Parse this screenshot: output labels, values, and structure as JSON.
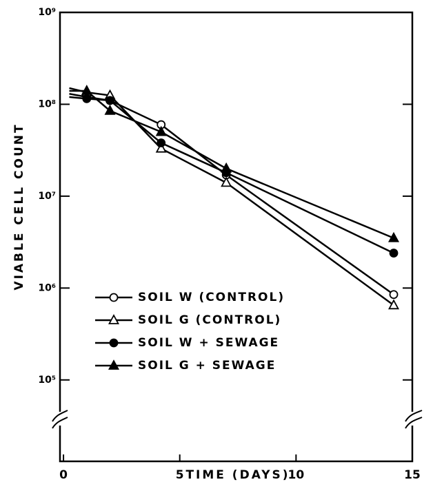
{
  "chart_data": {
    "type": "line",
    "x_label": "TIME (DAYS)",
    "y_label": "VIABLE CELL COUNT",
    "xlim": [
      -0.15,
      15
    ],
    "xticks": [
      0,
      5,
      10,
      15
    ],
    "ylim": [
      13000,
      1000000000
    ],
    "log_y": true,
    "yticks": [
      {
        "value": 100000,
        "label": "10⁵"
      },
      {
        "value": 1000000,
        "label": "10⁶"
      },
      {
        "value": 10000000,
        "label": "10⁷"
      },
      {
        "value": 100000000,
        "label": "10⁸"
      },
      {
        "value": 1000000000,
        "label": "10⁹"
      }
    ],
    "series": [
      {
        "name": "SOIL W (CONTROL)",
        "color": "#000000",
        "marker": "open-circle",
        "x": [
          0.25,
          1,
          2,
          4.2,
          7,
          14.2
        ],
        "values": [
          130000000,
          120000000,
          110000000,
          60000000,
          17000000,
          850000
        ]
      },
      {
        "name": "SOIL G (CONTROL)",
        "color": "#000000",
        "marker": "open-triangle",
        "x": [
          0.25,
          1,
          2,
          4.2,
          7,
          14.2
        ],
        "values": [
          150000000,
          135000000,
          125000000,
          33000000,
          14000000,
          650000
        ]
      },
      {
        "name": "SOIL W + SEWAGE",
        "color": "#000000",
        "marker": "filled-circle",
        "x": [
          0.25,
          1,
          2,
          4.2,
          7,
          14.2
        ],
        "values": [
          120000000,
          115000000,
          110000000,
          38000000,
          18000000,
          2400000
        ]
      },
      {
        "name": "SOIL G + SEWAGE",
        "color": "#000000",
        "marker": "filled-triangle",
        "x": [
          0.25,
          1,
          2,
          4.2,
          7,
          14.2
        ],
        "values": [
          140000000,
          140000000,
          85000000,
          50000000,
          20000000,
          3500000
        ]
      }
    ]
  }
}
